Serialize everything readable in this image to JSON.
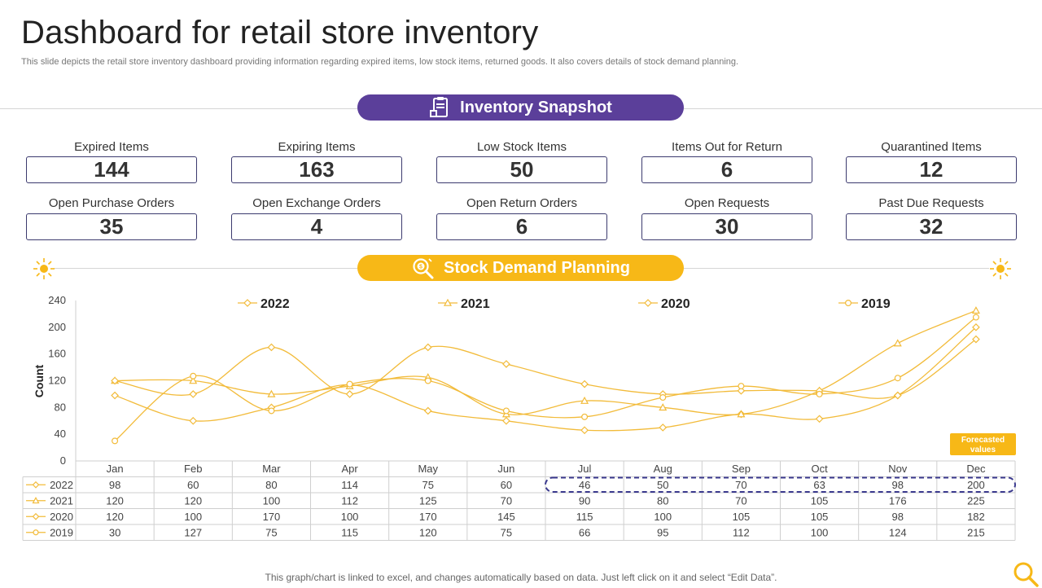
{
  "header": {
    "title": "Dashboard for retail store inventory",
    "subtitle": "This slide depicts the retail store inventory  dashboard providing information regarding expired items, low stock items, returned goods. It also covers details of stock demand planning."
  },
  "snapshot": {
    "title": "Inventory Snapshot",
    "icon": "inventory-clipboard-icon",
    "kpis": [
      {
        "label": "Expired Items",
        "value": "144"
      },
      {
        "label": "Expiring Items",
        "value": "163"
      },
      {
        "label": "Low Stock Items",
        "value": "50"
      },
      {
        "label": "Items Out for Return",
        "value": "6"
      },
      {
        "label": "Quarantined Items",
        "value": "12"
      },
      {
        "label": "Open Purchase Orders",
        "value": "35"
      },
      {
        "label": "Open Exchange Orders",
        "value": "4"
      },
      {
        "label": "Open Return Orders",
        "value": "6"
      },
      {
        "label": "Open Requests",
        "value": "30"
      },
      {
        "label": "Past Due Requests",
        "value": "32"
      }
    ]
  },
  "demand": {
    "title": "Stock Demand Planning",
    "icon": "magnifier-coin-icon"
  },
  "colors": {
    "purple": "#5b3f9a",
    "yellow": "#f7b817",
    "navy_dash": "#3b3a8e",
    "series": [
      "#f2bb3a",
      "#f2bb3a",
      "#f2bb3a",
      "#f2bb3a"
    ]
  },
  "chart_data": {
    "type": "line",
    "title": "",
    "xlabel": "",
    "ylabel": "Count",
    "ylim": [
      0,
      240
    ],
    "yticks": [
      "0",
      "40",
      "80",
      "120",
      "160",
      "200",
      "240"
    ],
    "categories": [
      "Jan",
      "Feb",
      "Mar",
      "Apr",
      "May",
      "Jun",
      "Jul",
      "Aug",
      "Sep",
      "Oct",
      "Nov",
      "Dec"
    ],
    "series": [
      {
        "name": "2022",
        "marker": "diamond",
        "values": [
          98,
          60,
          80,
          114,
          75,
          60,
          46,
          50,
          70,
          63,
          98,
          200
        ]
      },
      {
        "name": "2021",
        "marker": "triangle",
        "values": [
          120,
          120,
          100,
          112,
          125,
          70,
          90,
          80,
          70,
          105,
          176,
          225
        ]
      },
      {
        "name": "2020",
        "marker": "diamond",
        "values": [
          120,
          100,
          170,
          100,
          170,
          145,
          115,
          100,
          105,
          105,
          98,
          182
        ]
      },
      {
        "name": "2019",
        "marker": "circle",
        "values": [
          30,
          127,
          75,
          115,
          120,
          75,
          66,
          95,
          112,
          100,
          124,
          215
        ]
      }
    ],
    "forecast_label": "Forecasted values",
    "forecast_months": [
      "Jul",
      "Aug",
      "Sep",
      "Oct",
      "Nov",
      "Dec"
    ],
    "legend_placement": "top"
  },
  "footer": {
    "note": "This graph/chart is linked to excel,  and changes automatically based on data. Just left click on it and select “Edit Data”."
  }
}
